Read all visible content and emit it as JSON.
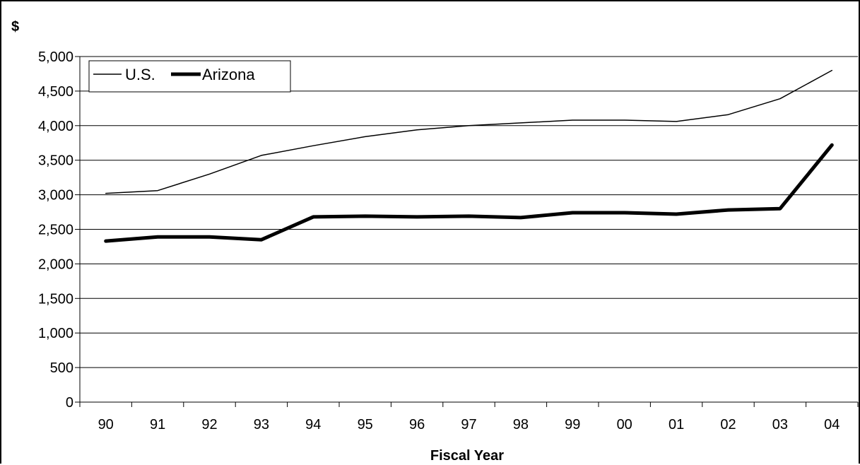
{
  "chart_data": {
    "type": "line",
    "title": "",
    "ylabel": "$",
    "xlabel": "Fiscal Year",
    "categories": [
      "90",
      "91",
      "92",
      "93",
      "94",
      "95",
      "96",
      "97",
      "98",
      "99",
      "00",
      "01",
      "02",
      "03",
      "04"
    ],
    "ylim": [
      0,
      5000
    ],
    "yticks": [
      0,
      500,
      1000,
      1500,
      2000,
      2500,
      3000,
      3500,
      4000,
      4500,
      5000
    ],
    "ytick_labels": [
      "0",
      "500",
      "1,000",
      "1,500",
      "2,000",
      "2,500",
      "3,000",
      "3,500",
      "4,000",
      "4,500",
      "5,000"
    ],
    "grid": true,
    "legend_position": "top-left",
    "series": [
      {
        "name": "U.S.",
        "color": "#000000",
        "values": [
          3020,
          3060,
          3300,
          3570,
          3710,
          3840,
          3940,
          4000,
          4040,
          4080,
          4080,
          4060,
          4160,
          4390,
          4800
        ]
      },
      {
        "name": "Arizona",
        "color": "#000000",
        "values": [
          2330,
          2390,
          2390,
          2350,
          2680,
          2690,
          2680,
          2690,
          2670,
          2740,
          2740,
          2720,
          2780,
          2800,
          3720
        ]
      }
    ]
  }
}
